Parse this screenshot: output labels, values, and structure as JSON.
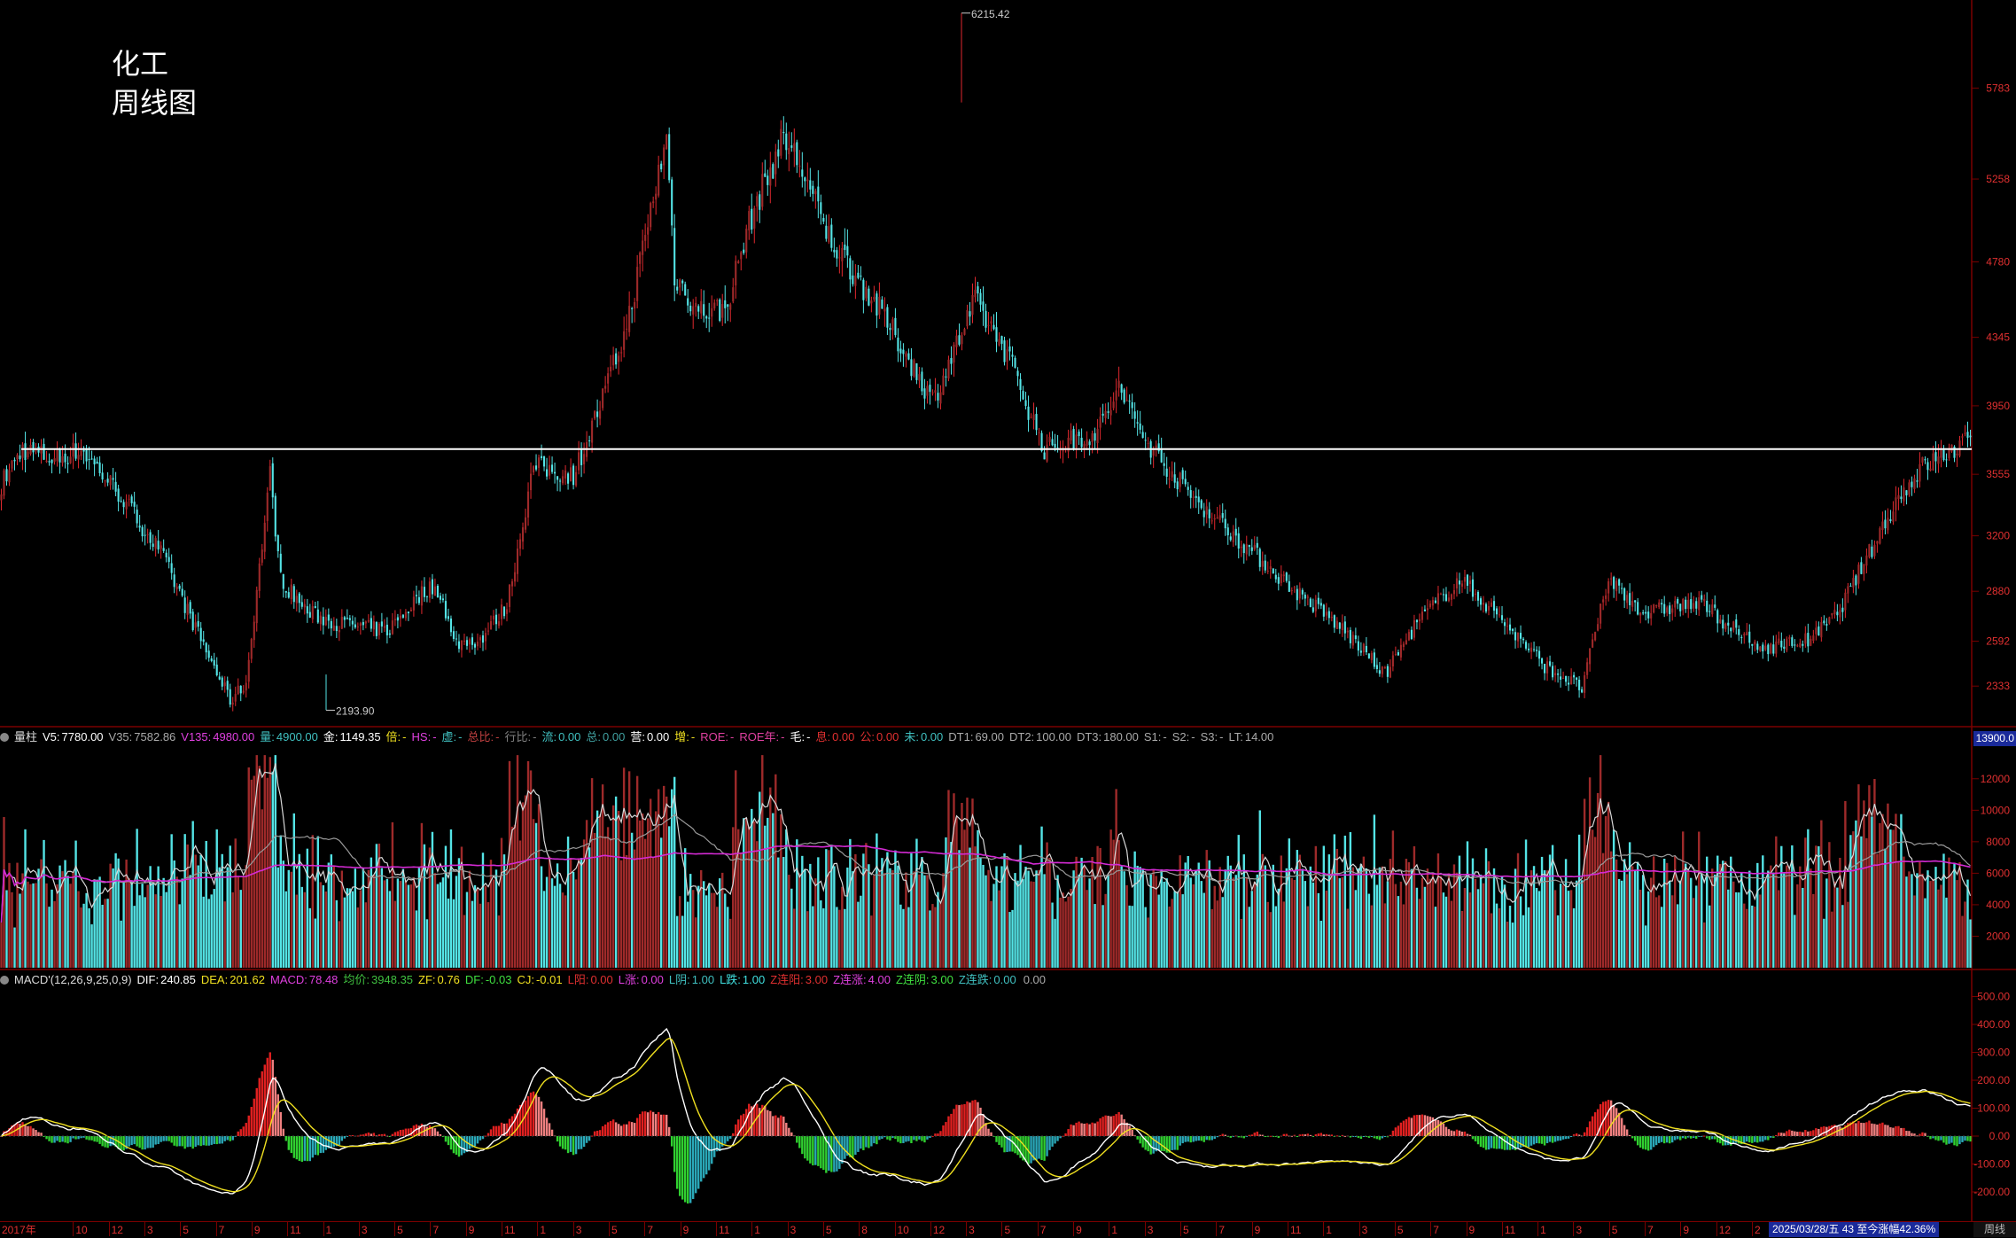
{
  "title": {
    "sector": "化工",
    "period": "周线图"
  },
  "colors": {
    "up": "#e0282e",
    "upHollow": "#9e2a2a",
    "down": "#54e4e6",
    "grid": "#7a0000",
    "ref_line": "#ffffff",
    "ma_white": "#d8d8d8",
    "ma_magenta": "#d42ad4",
    "ma_gray": "#9a9a9a",
    "dif": "#ffffff",
    "dea": "#f0e020"
  },
  "price_panel": {
    "high_label": "6215.42",
    "low_label": "2193.90",
    "axis_ticks": [
      "5783",
      "5258",
      "4780",
      "4345",
      "3950",
      "3555",
      "3200",
      "2880",
      "2592",
      "2333"
    ],
    "ref_line_value": 3700
  },
  "volume_panel": {
    "label": "量柱",
    "items": [
      {
        "k": "V5:",
        "v": "7780.00",
        "c": "#ffffff"
      },
      {
        "k": "V35:",
        "v": "7582.86",
        "c": "#aaaaaa"
      },
      {
        "k": "V135:",
        "v": "4980.00",
        "c": "#e040e0"
      },
      {
        "k": "量:",
        "v": "4900.00",
        "c": "#40c0c0"
      },
      {
        "k": "金:",
        "v": "1149.35",
        "c": "#ffffff"
      },
      {
        "k": "倍:",
        "v": "-",
        "c": "#f0e020"
      },
      {
        "k": "HS:",
        "v": "-",
        "c": "#e040e0"
      },
      {
        "k": "虚:",
        "v": "-",
        "c": "#40c0c0"
      },
      {
        "k": "总比:",
        "v": "-",
        "c": "#c04040"
      },
      {
        "k": "行比:",
        "v": "-",
        "c": "#808080"
      },
      {
        "k": "流:",
        "v": "0.00",
        "c": "#40c0c0"
      },
      {
        "k": "总:",
        "v": "0.00",
        "c": "#40a0a0"
      },
      {
        "k": "营:",
        "v": "0.00",
        "c": "#ffffff"
      },
      {
        "k": "增:",
        "v": "-",
        "c": "#f0e020"
      },
      {
        "k": "ROE:",
        "v": "-",
        "c": "#e040a0"
      },
      {
        "k": "ROE年:",
        "v": "-",
        "c": "#e040a0"
      },
      {
        "k": "毛:",
        "v": "-",
        "c": "#ffffff"
      },
      {
        "k": "息:",
        "v": "0.00",
        "c": "#e03030"
      },
      {
        "k": "公:",
        "v": "0.00",
        "c": "#e03030"
      },
      {
        "k": "未:",
        "v": "0.00",
        "c": "#40c0c0"
      },
      {
        "k": "DT1:",
        "v": "69.00",
        "c": "#aaaaaa"
      },
      {
        "k": "DT2:",
        "v": "100.00",
        "c": "#aaaaaa"
      },
      {
        "k": "DT3:",
        "v": "180.00",
        "c": "#aaaaaa"
      },
      {
        "k": "S1:",
        "v": "-",
        "c": "#aaaaaa"
      },
      {
        "k": "S2:",
        "v": "-",
        "c": "#aaaaaa"
      },
      {
        "k": "S3:",
        "v": "-",
        "c": "#aaaaaa"
      },
      {
        "k": "LT:",
        "v": "14.00",
        "c": "#aaaaaa"
      }
    ],
    "badge": "13900.0",
    "axis_ticks": [
      "12000",
      "10000",
      "8000",
      "6000",
      "4000",
      "2000"
    ]
  },
  "macd_panel": {
    "label": "MACD'(12,26,9,25,0,9)",
    "items": [
      {
        "k": "DIF:",
        "v": "240.85",
        "c": "#ffffff"
      },
      {
        "k": "DEA:",
        "v": "201.62",
        "c": "#f0e020"
      },
      {
        "k": "MACD:",
        "v": "78.48",
        "c": "#e040e0"
      },
      {
        "k": "均价:",
        "v": "3948.35",
        "c": "#40c040"
      },
      {
        "k": "ZF:",
        "v": "0.76",
        "c": "#f0e020"
      },
      {
        "k": "DF:",
        "v": "-0.03",
        "c": "#40e040"
      },
      {
        "k": "CJ:",
        "v": "-0.01",
        "c": "#f0e020"
      },
      {
        "k": "L阳:",
        "v": "0.00",
        "c": "#e03030"
      },
      {
        "k": "L涨:",
        "v": "0.00",
        "c": "#e040e0"
      },
      {
        "k": "L阴:",
        "v": "1.00",
        "c": "#40c0c0"
      },
      {
        "k": "L跌:",
        "v": "1.00",
        "c": "#40e0e0"
      },
      {
        "k": "Z连阳:",
        "v": "3.00",
        "c": "#e03030"
      },
      {
        "k": "Z连涨:",
        "v": "4.00",
        "c": "#e040e0"
      },
      {
        "k": "Z连阴:",
        "v": "3.00",
        "c": "#40e040"
      },
      {
        "k": "Z连跌:",
        "v": "0.00",
        "c": "#40c0c0"
      },
      {
        "k": "",
        "v": "0.00",
        "c": "#aaaaaa"
      }
    ],
    "axis_ticks": [
      "500.00",
      "400.00",
      "300.00",
      "200.00",
      "100.00",
      "0.00",
      "-100.00",
      "-200.00"
    ]
  },
  "time_axis": {
    "labels": [
      "2017年",
      "10",
      "12",
      "3",
      "5",
      "7",
      "9",
      "11",
      "1",
      "3",
      "5",
      "7",
      "9",
      "11",
      "1",
      "3",
      "5",
      "7",
      "9",
      "11",
      "1",
      "3",
      "5",
      "8",
      "10",
      "12",
      "3",
      "5",
      "7",
      "9",
      "1",
      "3",
      "5",
      "7",
      "9",
      "11",
      "1",
      "3",
      "5",
      "7",
      "9",
      "11",
      "1",
      "3",
      "5",
      "7",
      "9",
      "12",
      "2"
    ],
    "status": "2025/03/28/五 43 至今涨幅42.36%",
    "corner": "周线"
  }
}
